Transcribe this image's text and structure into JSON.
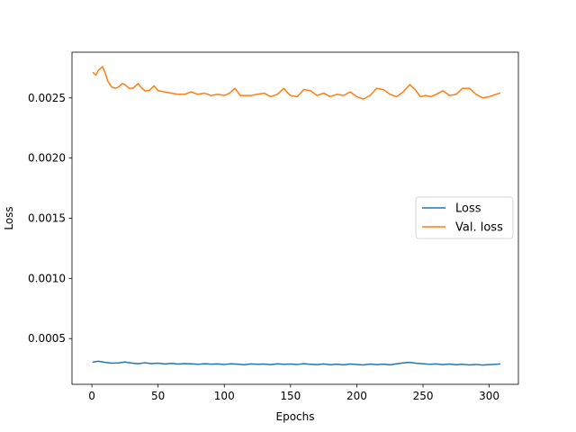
{
  "chart_data": {
    "type": "line",
    "xlabel": "Epochs",
    "ylabel": "Loss",
    "xlim": [
      -15,
      322
    ],
    "ylim": [
      0.00012,
      0.00288
    ],
    "xticks": [
      0,
      50,
      100,
      150,
      200,
      250,
      300
    ],
    "yticks": [
      0.0005,
      0.001,
      0.0015,
      0.002,
      0.0025
    ],
    "ytick_labels": [
      "0.0005",
      "0.0010",
      "0.0015",
      "0.0020",
      "0.0025"
    ],
    "grid": false,
    "legend_position": "center-right",
    "series": [
      {
        "name": "Loss",
        "color": "#1f77b4",
        "x": [
          1,
          5,
          10,
          15,
          20,
          25,
          30,
          35,
          40,
          45,
          50,
          55,
          60,
          65,
          70,
          75,
          80,
          85,
          90,
          95,
          100,
          105,
          110,
          115,
          120,
          125,
          130,
          135,
          140,
          145,
          150,
          155,
          160,
          165,
          170,
          175,
          180,
          185,
          190,
          195,
          200,
          205,
          210,
          215,
          220,
          225,
          230,
          235,
          240,
          245,
          250,
          255,
          260,
          265,
          270,
          275,
          280,
          285,
          290,
          295,
          300,
          305,
          308
        ],
        "values": [
          0.000305,
          0.000312,
          0.000302,
          0.000296,
          0.000298,
          0.000305,
          0.000297,
          0.000291,
          0.000299,
          0.000292,
          0.000296,
          0.000289,
          0.000294,
          0.000288,
          0.000292,
          0.00029,
          0.000286,
          0.000291,
          0.000287,
          0.000289,
          0.000285,
          0.00029,
          0.000287,
          0.000283,
          0.000289,
          0.000286,
          0.000288,
          0.000284,
          0.00029,
          0.000286,
          0.000288,
          0.000285,
          0.000291,
          0.000286,
          0.000284,
          0.000289,
          0.000283,
          0.000287,
          0.000282,
          0.000288,
          0.000285,
          0.000281,
          0.000288,
          0.000284,
          0.000287,
          0.000282,
          0.00029,
          0.000298,
          0.000302,
          0.000295,
          0.000291,
          0.000286,
          0.000289,
          0.000284,
          0.000288,
          0.000283,
          0.000286,
          0.000281,
          0.000285,
          0.00028,
          0.000284,
          0.000286,
          0.000289
        ]
      },
      {
        "name": "Val. loss",
        "color": "#ff7f0e",
        "x": [
          1,
          3,
          5,
          8,
          10,
          12,
          15,
          18,
          20,
          23,
          25,
          28,
          31,
          35,
          37,
          40,
          43,
          47,
          50,
          55,
          60,
          65,
          70,
          75,
          80,
          85,
          90,
          95,
          100,
          104,
          108,
          112,
          116,
          120,
          125,
          130,
          135,
          140,
          145,
          148,
          150,
          155,
          160,
          165,
          170,
          175,
          180,
          185,
          190,
          195,
          200,
          205,
          210,
          215,
          220,
          225,
          230,
          235,
          240,
          244,
          248,
          252,
          256,
          260,
          265,
          270,
          275,
          280,
          285,
          290,
          295,
          300,
          305,
          308
        ],
        "values": [
          0.00271,
          0.00269,
          0.00273,
          0.00276,
          0.00271,
          0.00264,
          0.00259,
          0.00258,
          0.00259,
          0.00262,
          0.00261,
          0.00258,
          0.00258,
          0.00262,
          0.00259,
          0.00256,
          0.00256,
          0.0026,
          0.00256,
          0.00255,
          0.00254,
          0.00253,
          0.00253,
          0.00255,
          0.00253,
          0.00254,
          0.00252,
          0.00253,
          0.00252,
          0.00254,
          0.00258,
          0.00252,
          0.00252,
          0.00252,
          0.00253,
          0.00254,
          0.00251,
          0.00253,
          0.00258,
          0.00254,
          0.00252,
          0.00251,
          0.00257,
          0.00256,
          0.00252,
          0.00254,
          0.00251,
          0.00253,
          0.00252,
          0.00255,
          0.00251,
          0.00249,
          0.00252,
          0.00258,
          0.00257,
          0.00253,
          0.00251,
          0.00255,
          0.00261,
          0.00257,
          0.00251,
          0.00252,
          0.00251,
          0.00253,
          0.00256,
          0.00252,
          0.00253,
          0.00258,
          0.00258,
          0.00253,
          0.0025,
          0.00251,
          0.00253,
          0.00254
        ]
      }
    ]
  }
}
